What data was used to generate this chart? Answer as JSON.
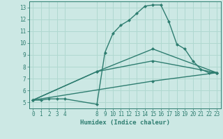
{
  "xlabel": "Humidex (Indice chaleur)",
  "background_color": "#cce8e4",
  "grid_color": "#b0d8d0",
  "line_color": "#2e7d70",
  "xlim": [
    -0.5,
    23.5
  ],
  "ylim": [
    4.5,
    13.5
  ],
  "xticks": [
    0,
    1,
    2,
    3,
    4,
    8,
    9,
    10,
    11,
    12,
    13,
    14,
    15,
    16,
    17,
    18,
    19,
    20,
    21,
    22,
    23
  ],
  "xtick_labels": [
    "0",
    "1",
    "2",
    "3",
    "4",
    "8",
    "9",
    "10",
    "11",
    "12",
    "13",
    "14",
    "15",
    "16",
    "17",
    "18",
    "19",
    "20",
    "21",
    "22",
    "23"
  ],
  "yticks": [
    5,
    6,
    7,
    8,
    9,
    10,
    11,
    12,
    13
  ],
  "line1_x": [
    0,
    1,
    2,
    3,
    4,
    8,
    9,
    10,
    11,
    12,
    13,
    14,
    15,
    16,
    17,
    18,
    19,
    20,
    21,
    22,
    23
  ],
  "line1_y": [
    5.2,
    5.2,
    5.3,
    5.3,
    5.3,
    4.85,
    9.2,
    10.8,
    11.5,
    11.9,
    12.5,
    13.1,
    13.2,
    13.2,
    11.8,
    9.9,
    9.5,
    8.5,
    7.8,
    7.5,
    7.5
  ],
  "line2_x": [
    0,
    8,
    15,
    23
  ],
  "line2_y": [
    5.2,
    7.6,
    9.5,
    7.5
  ],
  "line3_x": [
    0,
    8,
    15,
    23
  ],
  "line3_y": [
    5.2,
    7.6,
    8.5,
    7.5
  ],
  "line4_x": [
    0,
    15,
    23
  ],
  "line4_y": [
    5.2,
    6.8,
    7.5
  ]
}
